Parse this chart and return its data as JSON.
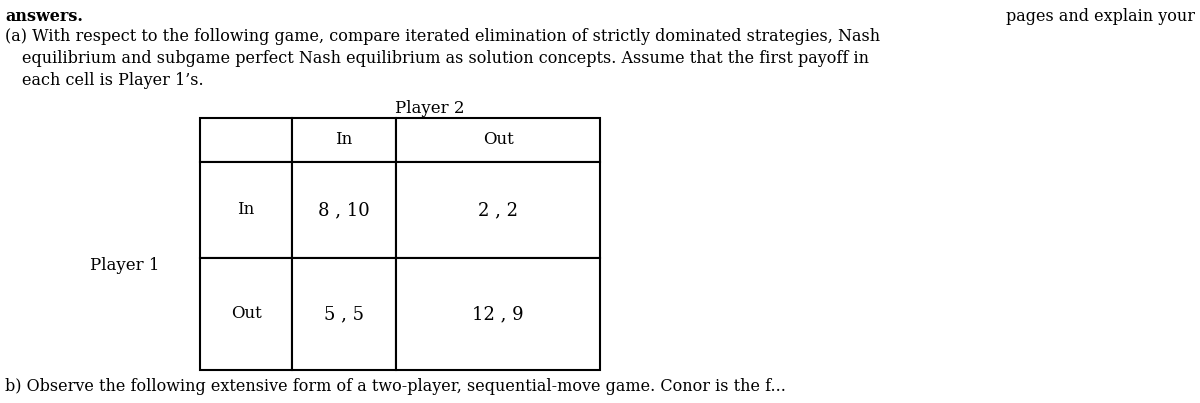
{
  "background_color": "#ffffff",
  "top_right_text": "pages and explain your",
  "part_a_line1": "answers.",
  "part_a_text": "(a) With respect to the following game, compare iterated elimination of strictly dominated strategies, Nash\n    equilibrium and subgame perfect Nash equilibrium as solution concepts. Assume that the first payoff in\n    each cell is Player 1’s.",
  "part_b_text": "b) Observe the following extensive form of a two-player, sequential-move game. Conor is the f...",
  "player2_label": "Player 2",
  "player1_label": "Player 1",
  "col_headers": [
    "In",
    "Out"
  ],
  "row_headers": [
    "In",
    "Out"
  ],
  "cell_values": [
    [
      "8 , 10",
      "2 , 2"
    ],
    [
      "5 , 5",
      "12 , 9"
    ]
  ],
  "font_family": "serif",
  "main_fontsize": 11.5,
  "label_fontsize": 12,
  "cell_fontsize": 13,
  "answers_text": "answers."
}
